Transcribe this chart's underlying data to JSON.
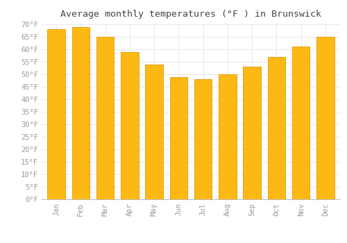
{
  "title": "Average monthly temperatures (°F ) in Brunswick",
  "months": [
    "Jan",
    "Feb",
    "Mar",
    "Apr",
    "May",
    "Jun",
    "Jul",
    "Aug",
    "Sep",
    "Oct",
    "Nov",
    "Dec"
  ],
  "values": [
    68,
    69,
    65,
    59,
    54,
    49,
    48,
    50,
    53,
    57,
    61,
    65
  ],
  "bar_color_face": "#FDB913",
  "bar_color_edge": "#E8960A",
  "background_color": "#FFFFFF",
  "plot_bg_color": "#FFFFFF",
  "grid_color": "#DDDDDD",
  "ylim": [
    0,
    70
  ],
  "yticks": [
    0,
    5,
    10,
    15,
    20,
    25,
    30,
    35,
    40,
    45,
    50,
    55,
    60,
    65,
    70
  ],
  "title_fontsize": 9.5,
  "tick_fontsize": 7.5,
  "tick_color": "#999999",
  "title_color": "#444444",
  "bar_width": 0.72
}
